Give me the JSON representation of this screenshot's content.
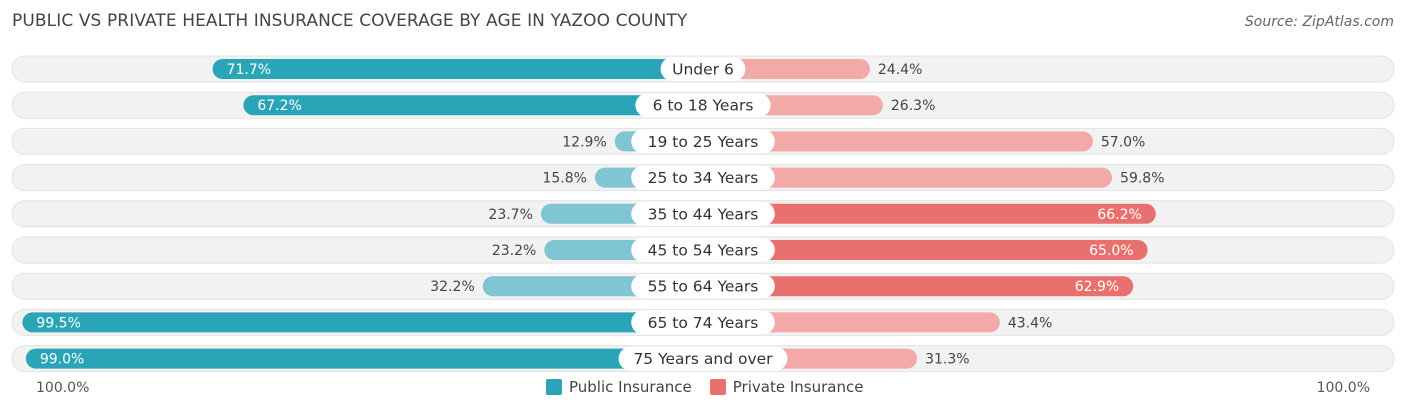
{
  "header": {
    "title": "PUBLIC VS PRIVATE HEALTH INSURANCE COVERAGE BY AGE IN YAZOO COUNTY",
    "source": "Source: ZipAtlas.com"
  },
  "colors": {
    "public": "#2aa5b8",
    "public_light": "#7fc6d2",
    "private": "#e8706f",
    "private_light": "#f2aaa8",
    "row_bg": "#f2f2f2"
  },
  "axis": {
    "left_label": "100.0%",
    "right_label": "100.0%"
  },
  "legend": {
    "public": "Public Insurance",
    "private": "Private Insurance"
  },
  "chart_data": {
    "type": "bar",
    "orientation": "horizontal-diverging",
    "title": "PUBLIC VS PRIVATE HEALTH INSURANCE COVERAGE BY AGE IN YAZOO COUNTY",
    "categories": [
      "Under 6",
      "6 to 18 Years",
      "19 to 25 Years",
      "25 to 34 Years",
      "35 to 44 Years",
      "45 to 54 Years",
      "55 to 64 Years",
      "65 to 74 Years",
      "75 Years and over"
    ],
    "series": [
      {
        "name": "Public Insurance",
        "values": [
          71.7,
          67.2,
          12.9,
          15.8,
          23.7,
          23.2,
          32.2,
          99.5,
          99.0
        ],
        "labels": [
          "71.7%",
          "67.2%",
          "12.9%",
          "15.8%",
          "23.7%",
          "23.2%",
          "32.2%",
          "99.5%",
          "99.0%"
        ]
      },
      {
        "name": "Private Insurance",
        "values": [
          24.4,
          26.3,
          57.0,
          59.8,
          66.2,
          65.0,
          62.9,
          43.4,
          31.3
        ],
        "labels": [
          "24.4%",
          "26.3%",
          "57.0%",
          "59.8%",
          "66.2%",
          "65.0%",
          "62.9%",
          "43.4%",
          "31.3%"
        ]
      }
    ],
    "xlim": [
      -100,
      100
    ],
    "legend_position": "bottom-center"
  }
}
